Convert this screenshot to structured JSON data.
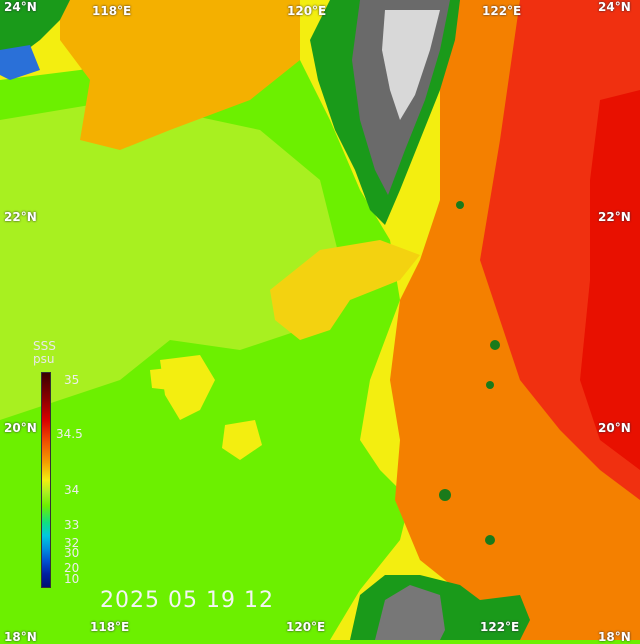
{
  "lon_labels_top": [
    "118°E",
    "120°E",
    "122°E"
  ],
  "lon_labels_bottom": [
    "118°E",
    "120°E",
    "122°E"
  ],
  "lat_labels_left": [
    "24°N",
    "22°N",
    "20°N",
    "18°N"
  ],
  "lat_labels_right": [
    "24°N",
    "22°N",
    "20°N",
    "18°N"
  ],
  "timestamp": "2025 05 19 12",
  "colorbar": {
    "title_line1": "SSS",
    "title_line2": "psu",
    "ticks": [
      "35",
      "34.5",
      "34",
      "33",
      "32",
      "30",
      "20",
      "10"
    ]
  },
  "colors": {
    "low_salinity": "#6cf000",
    "mid_salinity": "#f3ee10",
    "high_salinity": "#f4a000",
    "very_high": "#f02000",
    "land_low": "#1a9a1a",
    "land_high": "#c8c8c8"
  }
}
